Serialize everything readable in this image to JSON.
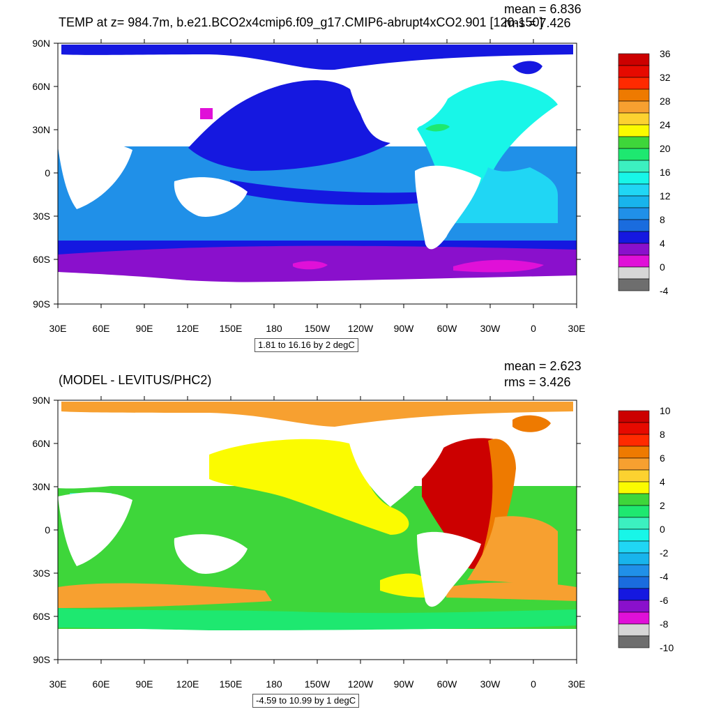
{
  "top": {
    "title": "TEMP at z= 984.7m, b.e21.BCO2x4cmip6.f09_g17.CMIP6-abrupt4xCO2.901 [120-150]",
    "mean": "mean = 6.836",
    "rms": "rms = 7.426",
    "info": "1.81 to 16.16 by 2 degC",
    "colorbar_labels": [
      "36",
      "32",
      "28",
      "24",
      "20",
      "16",
      "12",
      "8",
      "4",
      "0",
      "-4"
    ],
    "colorbar_colors": [
      "#cc0000",
      "#e60a00",
      "#ff2a00",
      "#ee7a00",
      "#f7a030",
      "#fcd230",
      "#fbfb00",
      "#3ed63a",
      "#1ee870",
      "#3cf0c0",
      "#18f6e8",
      "#20d6f4",
      "#18b4ec",
      "#2090e8",
      "#1a6cde",
      "#1518e0",
      "#8a10cc",
      "#e010d8",
      "#d6d6d6",
      "#6e6e6e"
    ]
  },
  "bottom": {
    "title": "(MODEL - LEVITUS/PHC2)",
    "mean": "mean = 2.623",
    "rms": "rms = 3.426",
    "info": "-4.59 to 10.99 by 1 degC",
    "colorbar_labels": [
      "10",
      "8",
      "6",
      "4",
      "2",
      "0",
      "-2",
      "-4",
      "-6",
      "-8",
      "-10"
    ],
    "colorbar_colors": [
      "#cc0000",
      "#e60a00",
      "#ff2a00",
      "#ee7a00",
      "#f7a030",
      "#fcd230",
      "#fbfb00",
      "#3ed63a",
      "#1ee870",
      "#3cf0c0",
      "#18f6e8",
      "#20d6f4",
      "#18b4ec",
      "#2090e8",
      "#1a6cde",
      "#1518e0",
      "#8a10cc",
      "#e010d8",
      "#d6d6d6",
      "#6e6e6e"
    ]
  },
  "axes": {
    "lat_labels": [
      "90N",
      "60N",
      "30N",
      "0",
      "30S",
      "60S",
      "90S"
    ],
    "lon_labels": [
      "30E",
      "60E",
      "90E",
      "120E",
      "150E",
      "180",
      "150W",
      "120W",
      "90W",
      "60W",
      "30W",
      "0",
      "30E"
    ]
  },
  "colors": {
    "land": "#ffffff",
    "top_pacific": "#1518e0",
    "top_ocean": "#2090e8",
    "top_atlantic": "#18f6e8",
    "top_southern": "#8a10cc",
    "bottom_ocean": "#3ed63a",
    "bottom_north_pacific": "#fbfb00",
    "bottom_arctic": "#f7a030",
    "bottom_north_atlantic": "#cc0000"
  }
}
